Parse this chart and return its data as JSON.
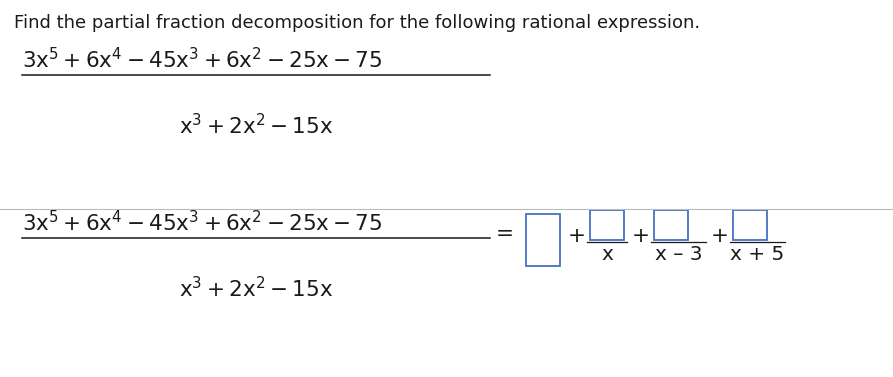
{
  "background_color": "#ffffff",
  "text_color": "#1a1a1a",
  "blue_color": "#4472c4",
  "title_text": "Find the partial fraction decomposition for the following rational expression.",
  "title_fontsize": 13.0,
  "math_fontsize": 15.5,
  "small_fontsize": 13.5,
  "separator_color": "#bbbbbb",
  "fraction_line_color": "#1a1a1a"
}
